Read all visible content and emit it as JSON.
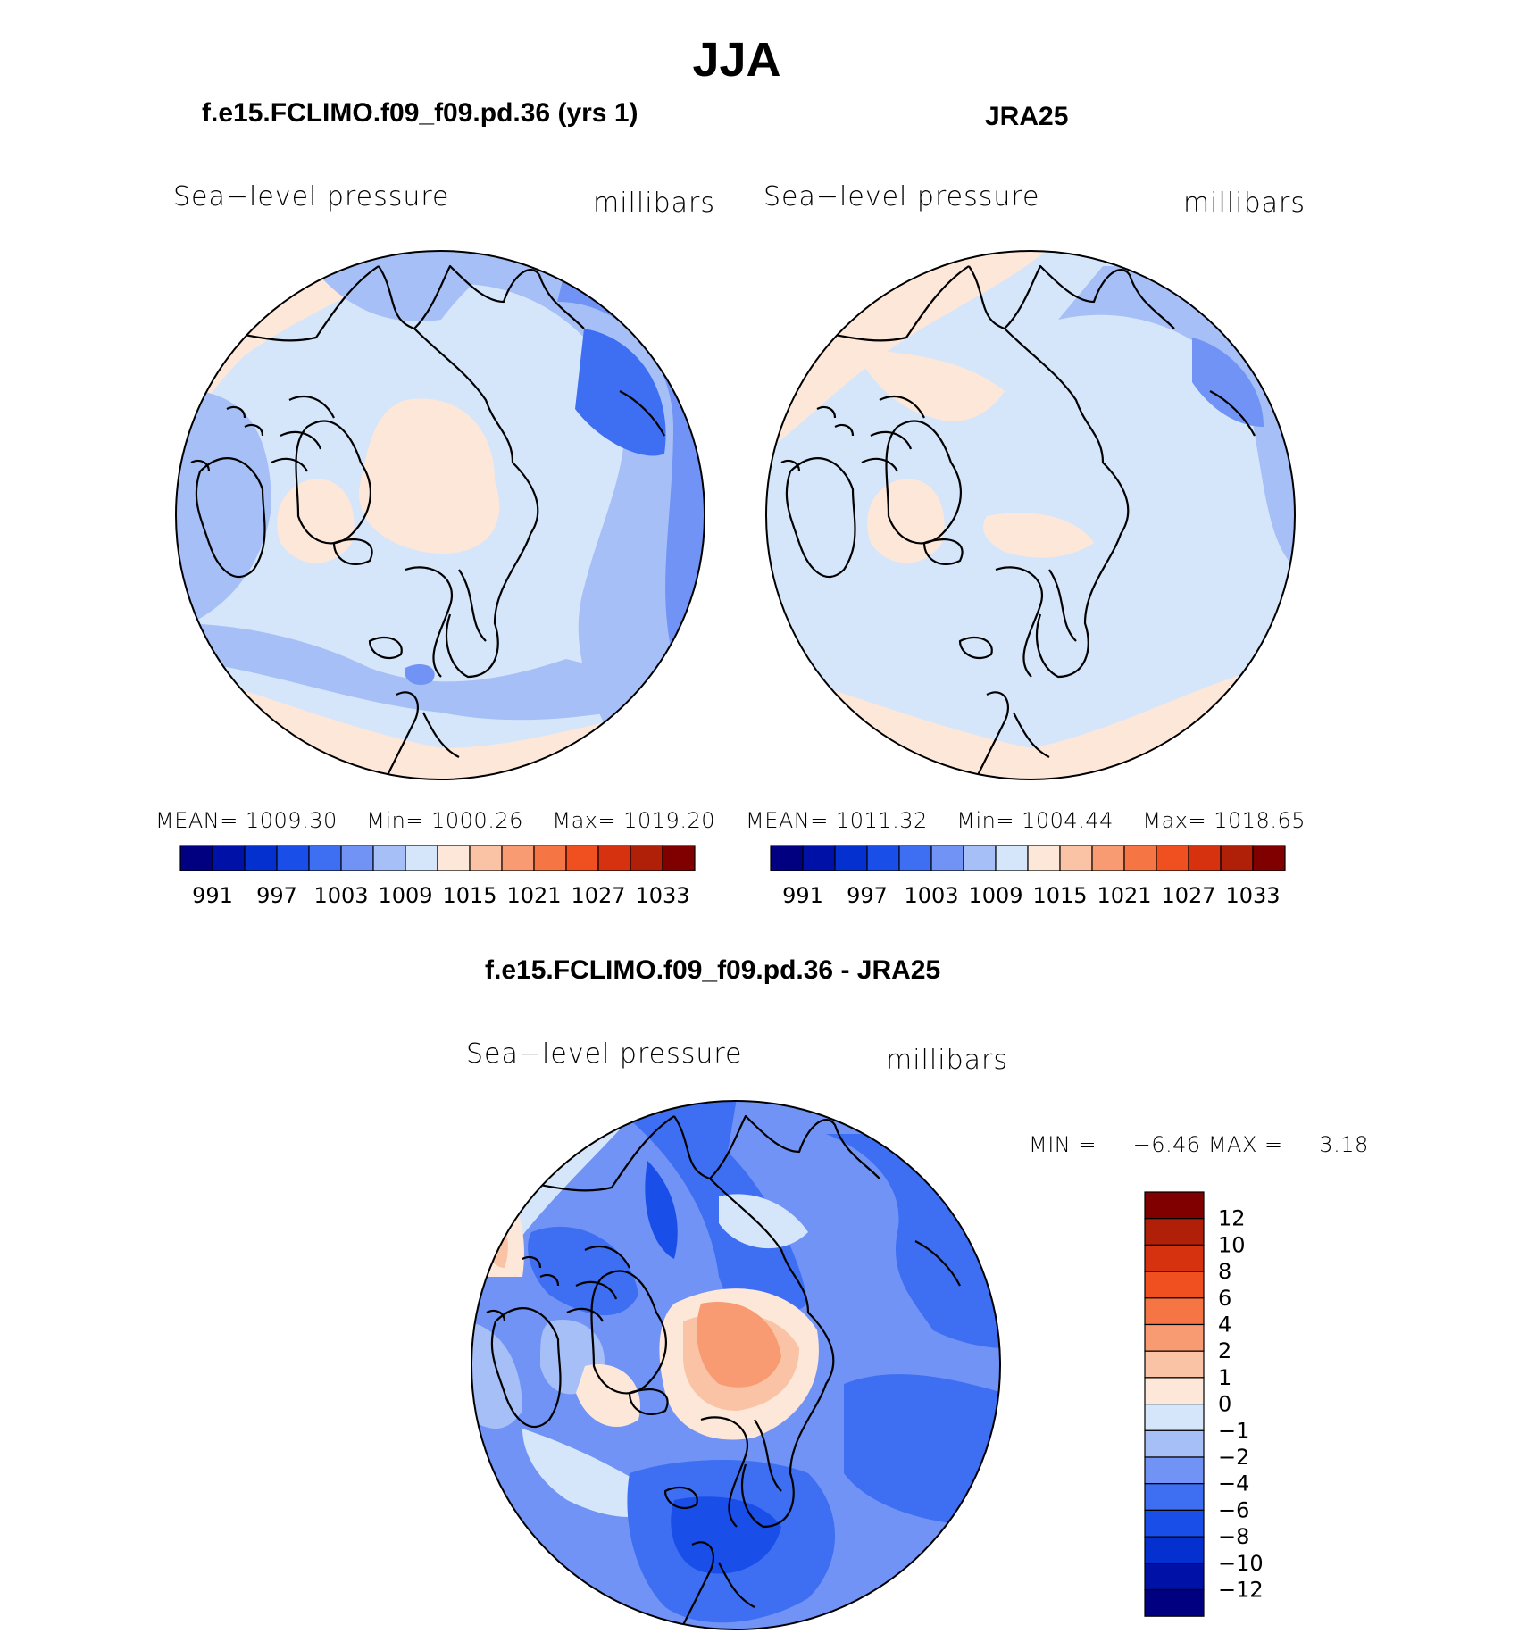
{
  "title": "JJA",
  "panels": [
    {
      "title": "f.e15.FCLIMO.f09_f09.pd.36 (yrs 1)",
      "left_label": "Sea−level pressure",
      "right_label": "millibars",
      "mean_label": "MEAN=",
      "mean_value": "1009.30",
      "min_label": "Min=",
      "min_value": "1000.26",
      "max_label": "Max=",
      "max_value": "1019.20"
    },
    {
      "title": "JRA25",
      "left_label": "Sea−level pressure",
      "right_label": "millibars",
      "mean_label": "MEAN=",
      "mean_value": "1011.32",
      "min_label": "Min=",
      "min_value": "1004.44",
      "max_label": "Max=",
      "max_value": "1018.65"
    }
  ],
  "abs_colorbar": {
    "colors": [
      "#000080",
      "#0011a8",
      "#0530d0",
      "#1a4ee8",
      "#3e6ff2",
      "#7093f5",
      "#a6c0f7",
      "#d6e6fa",
      "#fde7d9",
      "#fbc3a6",
      "#f89a72",
      "#f57545",
      "#f0501f",
      "#d73210",
      "#b02008",
      "#800000"
    ],
    "labels": [
      "991",
      "997",
      "1003",
      "1009",
      "1015",
      "1021",
      "1027",
      "1033"
    ]
  },
  "diff_panel": {
    "title": "f.e15.FCLIMO.f09_f09.pd.36 - JRA25",
    "left_label": "Sea−level pressure",
    "right_label": "millibars",
    "min_label": "MIN =",
    "min_value": "−6.46",
    "max_label": "MAX =",
    "max_value": "3.18"
  },
  "diff_colorbar": {
    "colors": [
      "#800000",
      "#b02008",
      "#d73210",
      "#f0501f",
      "#f57545",
      "#f89a72",
      "#fbc3a6",
      "#fde7d9",
      "#d6e6fa",
      "#a6c0f7",
      "#7093f5",
      "#3e6ff2",
      "#1a4ee8",
      "#0530d0",
      "#0011a8",
      "#000080"
    ],
    "labels": [
      "12",
      "10",
      "8",
      "6",
      "4",
      "2",
      "1",
      "0",
      "−1",
      "−2",
      "−4",
      "−6",
      "−8",
      "−10",
      "−12"
    ]
  }
}
